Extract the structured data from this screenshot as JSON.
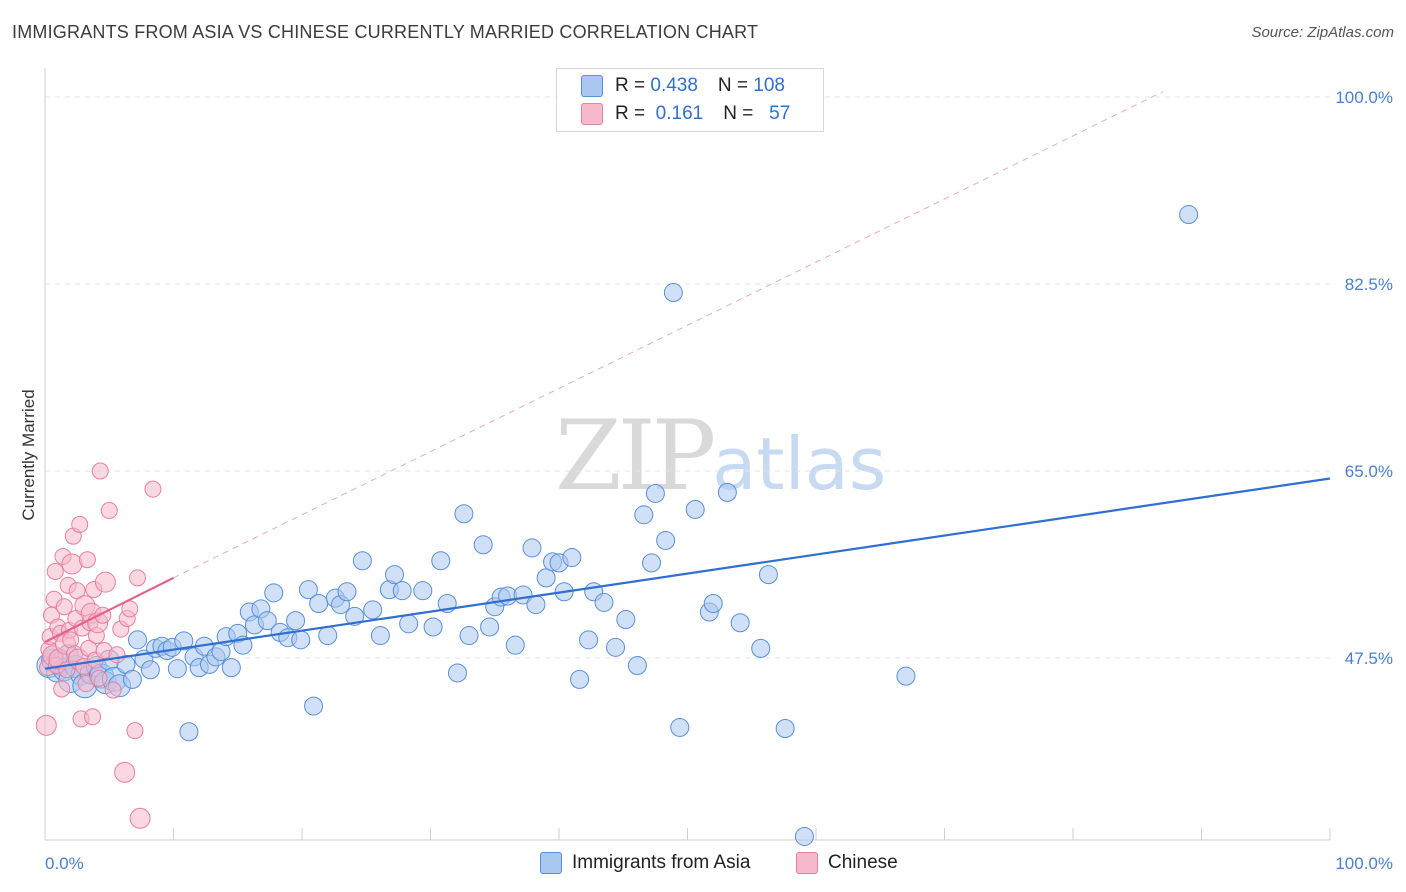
{
  "header": {
    "title": "IMMIGRANTS FROM ASIA VS CHINESE CURRENTLY MARRIED CORRELATION CHART",
    "source": "Source: ZipAtlas.com"
  },
  "watermark": {
    "zip": "ZIP",
    "atlas": "atlas"
  },
  "legend": {
    "rows": [
      {
        "r_label": "R = ",
        "r_value": "0.438",
        "n_label": "N = ",
        "n_value": "108"
      },
      {
        "r_label": "R = ",
        "r_value": " 0.161",
        "n_label": "N = ",
        "n_value": "  57"
      }
    ]
  },
  "bottom_legend": {
    "series1": "Immigrants from Asia",
    "series2": "Chinese"
  },
  "colors": {
    "blue_fill": "#a9c8f0",
    "blue_stroke": "#5a8fd8",
    "blue_line": "#2f6fd0",
    "pink_fill": "#f6b8cb",
    "pink_stroke": "#e77fa0",
    "pink_line": "#e4628c",
    "axis_label": "#4a7fd0"
  },
  "chart_data": {
    "type": "scatter",
    "title": "IMMIGRANTS FROM ASIA VS CHINESE CURRENTLY MARRIED CORRELATION CHART",
    "ylabel": "Currently Married",
    "xlabel": "",
    "xlim": [
      0,
      100
    ],
    "ylim": [
      30,
      100
    ],
    "x_ticks": [
      "0.0%",
      "100.0%"
    ],
    "y_ticks": [
      {
        "value": 100.0,
        "label": "100.0%"
      },
      {
        "value": 82.5,
        "label": "82.5%"
      },
      {
        "value": 65.0,
        "label": "65.0%"
      },
      {
        "value": 47.5,
        "label": "47.5%"
      }
    ],
    "grid": true,
    "legend_position": "top-center",
    "series": [
      {
        "name": "Immigrants from Asia",
        "color": "#a9c8f0",
        "R": 0.438,
        "N": 108,
        "trend": {
          "x": [
            0,
            100
          ],
          "y": [
            46.5,
            64.3
          ]
        },
        "points": [
          [
            0.3,
            46.8
          ],
          [
            0.6,
            47.3
          ],
          [
            0.9,
            46.2
          ],
          [
            1.2,
            47.0
          ],
          [
            1.5,
            46.4
          ],
          [
            1.8,
            47.8
          ],
          [
            2.0,
            45.4
          ],
          [
            2.4,
            46.7
          ],
          [
            2.8,
            45.9
          ],
          [
            3.1,
            44.9
          ],
          [
            3.6,
            46.1
          ],
          [
            4.0,
            46.7
          ],
          [
            4.4,
            45.8
          ],
          [
            4.7,
            45.2
          ],
          [
            5.0,
            47.3
          ],
          [
            5.4,
            45.5
          ],
          [
            5.8,
            44.9
          ],
          [
            6.3,
            46.9
          ],
          [
            6.8,
            45.5
          ],
          [
            7.2,
            49.2
          ],
          [
            7.7,
            47.4
          ],
          [
            8.2,
            46.4
          ],
          [
            8.6,
            48.4
          ],
          [
            9.1,
            48.6
          ],
          [
            9.5,
            48.2
          ],
          [
            9.9,
            48.5
          ],
          [
            10.3,
            46.5
          ],
          [
            10.8,
            49.1
          ],
          [
            11.2,
            40.6
          ],
          [
            11.6,
            47.6
          ],
          [
            12.0,
            46.6
          ],
          [
            12.4,
            48.6
          ],
          [
            12.8,
            46.9
          ],
          [
            13.3,
            47.6
          ],
          [
            13.7,
            48.1
          ],
          [
            14.1,
            49.5
          ],
          [
            14.5,
            46.6
          ],
          [
            15.0,
            49.8
          ],
          [
            15.4,
            48.7
          ],
          [
            15.9,
            51.8
          ],
          [
            16.3,
            50.6
          ],
          [
            16.8,
            52.1
          ],
          [
            17.3,
            51.0
          ],
          [
            17.8,
            53.6
          ],
          [
            18.3,
            49.9
          ],
          [
            18.9,
            49.4
          ],
          [
            19.5,
            51.0
          ],
          [
            19.9,
            49.2
          ],
          [
            20.5,
            53.9
          ],
          [
            20.9,
            43.0
          ],
          [
            21.3,
            52.6
          ],
          [
            22.0,
            49.6
          ],
          [
            22.6,
            53.1
          ],
          [
            23.0,
            52.5
          ],
          [
            23.5,
            53.7
          ],
          [
            24.1,
            51.4
          ],
          [
            24.7,
            56.6
          ],
          [
            25.5,
            52.0
          ],
          [
            26.1,
            49.6
          ],
          [
            26.8,
            53.9
          ],
          [
            27.2,
            55.3
          ],
          [
            27.8,
            53.8
          ],
          [
            28.3,
            50.7
          ],
          [
            29.4,
            53.8
          ],
          [
            30.2,
            50.4
          ],
          [
            30.8,
            56.6
          ],
          [
            31.3,
            52.6
          ],
          [
            32.1,
            46.1
          ],
          [
            32.6,
            61.0
          ],
          [
            33.0,
            49.6
          ],
          [
            34.1,
            58.1
          ],
          [
            34.6,
            50.4
          ],
          [
            35.0,
            52.3
          ],
          [
            35.5,
            53.2
          ],
          [
            36.0,
            53.3
          ],
          [
            36.6,
            48.7
          ],
          [
            37.2,
            53.4
          ],
          [
            37.9,
            57.8
          ],
          [
            38.2,
            52.5
          ],
          [
            39.0,
            55.0
          ],
          [
            39.5,
            56.5
          ],
          [
            40.0,
            56.4
          ],
          [
            40.4,
            53.7
          ],
          [
            41.0,
            56.9
          ],
          [
            41.6,
            45.5
          ],
          [
            42.3,
            49.2
          ],
          [
            42.7,
            53.7
          ],
          [
            43.5,
            52.7
          ],
          [
            44.4,
            48.5
          ],
          [
            45.2,
            51.1
          ],
          [
            46.1,
            46.8
          ],
          [
            46.6,
            60.9
          ],
          [
            47.2,
            56.4
          ],
          [
            47.5,
            62.9
          ],
          [
            48.3,
            58.5
          ],
          [
            48.9,
            81.7
          ],
          [
            49.4,
            41.0
          ],
          [
            50.6,
            61.4
          ],
          [
            51.7,
            51.8
          ],
          [
            52.0,
            52.6
          ],
          [
            53.1,
            63.0
          ],
          [
            54.1,
            50.8
          ],
          [
            55.7,
            48.4
          ],
          [
            56.3,
            55.3
          ],
          [
            57.6,
            40.9
          ],
          [
            59.1,
            30.8
          ],
          [
            67.0,
            45.8
          ],
          [
            89.0,
            89.0
          ]
        ]
      },
      {
        "name": "Chinese",
        "color": "#f6b8cb",
        "R": 0.161,
        "N": 57,
        "trend": {
          "x": [
            0,
            10
          ],
          "y": [
            49.0,
            55.0
          ]
        },
        "points": [
          [
            0.1,
            41.2
          ],
          [
            0.2,
            46.6
          ],
          [
            0.3,
            48.3
          ],
          [
            0.4,
            49.5
          ],
          [
            0.5,
            51.5
          ],
          [
            0.6,
            47.7
          ],
          [
            0.7,
            53.0
          ],
          [
            0.8,
            55.6
          ],
          [
            0.9,
            46.8
          ],
          [
            1.0,
            50.4
          ],
          [
            1.1,
            47.4
          ],
          [
            1.2,
            49.8
          ],
          [
            1.3,
            44.6
          ],
          [
            1.4,
            57.0
          ],
          [
            1.5,
            52.3
          ],
          [
            1.6,
            48.8
          ],
          [
            1.7,
            46.4
          ],
          [
            1.8,
            54.3
          ],
          [
            1.9,
            50.1
          ],
          [
            2.0,
            49.2
          ],
          [
            2.1,
            56.3
          ],
          [
            2.2,
            58.9
          ],
          [
            2.3,
            47.9
          ],
          [
            2.4,
            51.2
          ],
          [
            2.5,
            53.8
          ],
          [
            2.6,
            47.4
          ],
          [
            2.7,
            60.0
          ],
          [
            2.8,
            41.8
          ],
          [
            2.9,
            50.3
          ],
          [
            3.0,
            46.7
          ],
          [
            3.1,
            52.4
          ],
          [
            3.2,
            45.1
          ],
          [
            3.3,
            56.7
          ],
          [
            3.4,
            48.4
          ],
          [
            3.5,
            50.8
          ],
          [
            3.6,
            51.7
          ],
          [
            3.7,
            42.0
          ],
          [
            3.8,
            53.9
          ],
          [
            3.9,
            47.3
          ],
          [
            4.0,
            49.6
          ],
          [
            4.1,
            50.8
          ],
          [
            4.2,
            45.6
          ],
          [
            4.3,
            65.0
          ],
          [
            4.5,
            51.5
          ],
          [
            4.6,
            48.2
          ],
          [
            4.7,
            54.6
          ],
          [
            5.0,
            61.3
          ],
          [
            5.3,
            44.5
          ],
          [
            5.6,
            47.8
          ],
          [
            5.9,
            50.2
          ],
          [
            6.2,
            36.8
          ],
          [
            6.4,
            51.2
          ],
          [
            6.6,
            52.1
          ],
          [
            7.0,
            40.7
          ],
          [
            7.2,
            55.0
          ],
          [
            7.4,
            32.5
          ],
          [
            8.4,
            63.3
          ]
        ]
      }
    ]
  }
}
